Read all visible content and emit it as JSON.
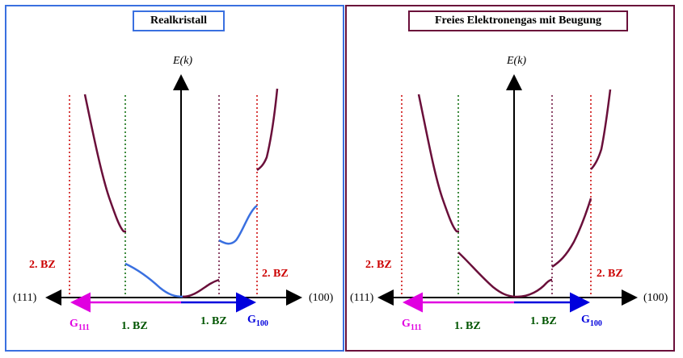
{
  "left_panel": {
    "title": "Realkristall",
    "energy_label": "E(k)",
    "axis_left": "(111)",
    "axis_right": "(100)",
    "bz2_left": "2. BZ",
    "bz2_right": "2. BZ",
    "bz1_left": "1. BZ",
    "bz1_right": "1. BZ",
    "g111_main": "G",
    "g111_sub": "111",
    "g100_main": "G",
    "g100_sub": "100"
  },
  "right_panel": {
    "title": "Freies Elektronengas mit Beugung",
    "energy_label": "E(k)",
    "axis_left": "(111)",
    "axis_right": "(100)",
    "bz2_left": "2. BZ",
    "bz2_right": "2. BZ",
    "bz1_left": "1. BZ",
    "bz1_right": "1. BZ",
    "g111_main": "G",
    "g111_sub": "111",
    "g100_main": "G",
    "g100_sub": "100"
  },
  "colors": {
    "left_border": "#3a70e0",
    "right_border": "#6a0f3a",
    "band_dark": "#6a0f3a",
    "band_blue": "#3a70e0",
    "bz2_line": "#cc0000",
    "bz1_line": "#006600",
    "g111_arrow": "#e000e0",
    "g100_arrow": "#0000dd"
  }
}
